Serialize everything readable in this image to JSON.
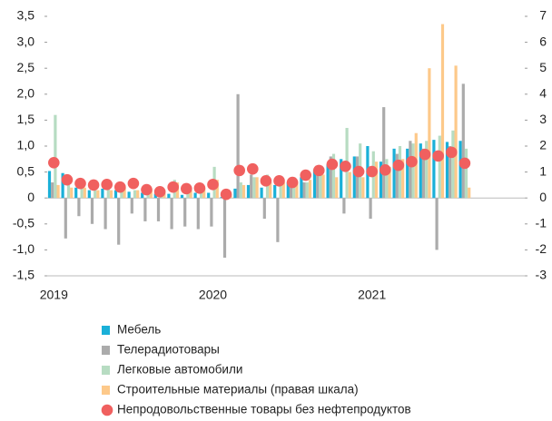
{
  "chart_data": {
    "type": "bar",
    "categories": [
      "2019",
      null,
      null,
      null,
      null,
      null,
      null,
      null,
      null,
      null,
      null,
      null,
      "2020",
      null,
      null,
      null,
      null,
      null,
      null,
      null,
      null,
      null,
      null,
      null,
      "2021",
      null,
      null,
      null,
      null,
      null,
      null,
      null
    ],
    "ylim": [
      -1.5,
      3.5
    ],
    "yticks": [
      {
        "value": -1.5,
        "label": "-1,5"
      },
      {
        "value": -1,
        "label": "-1,0"
      },
      {
        "value": -0.5,
        "label": "-0,5"
      },
      0,
      {
        "value": 0.5,
        "label": "0,5"
      },
      {
        "value": 1,
        "label": "1,0"
      },
      {
        "value": 1.5,
        "label": "1,5"
      },
      {
        "value": 2,
        "label": "2,0"
      },
      {
        "value": 2.5,
        "label": "2,5"
      },
      {
        "value": 3,
        "label": "3,0"
      },
      {
        "value": 3.5,
        "label": "3,5"
      }
    ],
    "y2lim": [
      -3,
      7
    ],
    "y2ticks": [
      -3,
      -2,
      -1,
      0,
      1,
      2,
      3,
      4,
      5,
      6,
      7
    ],
    "series": [
      {
        "name": "Мебель",
        "type": "bar",
        "color": "#1ab0d8",
        "values": [
          0.52,
          0.48,
          0.2,
          0.15,
          0.18,
          0.15,
          0.12,
          0.1,
          0.08,
          0.08,
          0.06,
          0.1,
          0.1,
          0.02,
          0.18,
          0.25,
          0.2,
          0.25,
          0.3,
          0.4,
          0.55,
          0.65,
          0.75,
          0.8,
          1.0,
          0.7,
          0.95,
          0.95,
          1.05,
          1.12,
          1.08,
          1.1
        ]
      },
      {
        "name": "Телерадиотовары",
        "type": "bar",
        "color": "#ababab",
        "values": [
          0.3,
          -0.78,
          -0.35,
          -0.5,
          -0.6,
          -0.9,
          -0.3,
          -0.45,
          -0.45,
          -0.6,
          -0.55,
          -0.6,
          -0.55,
          -1.15,
          2.0,
          0.45,
          -0.4,
          -0.85,
          0.3,
          0.3,
          0.6,
          0.8,
          -0.3,
          0.8,
          -0.4,
          1.75,
          0.85,
          1.1,
          0.95,
          -1.0,
          1.0,
          2.2
        ]
      },
      {
        "name": "Легковые автомобили",
        "type": "bar",
        "color": "#b7dcc2",
        "values": [
          1.6,
          0.25,
          0.2,
          0.15,
          0.25,
          0.2,
          0.15,
          0.15,
          0.2,
          0.35,
          0.1,
          0.25,
          0.6,
          0.05,
          0.3,
          0.4,
          0.45,
          0.3,
          0.4,
          0.3,
          0.5,
          0.85,
          1.35,
          1.05,
          0.9,
          0.75,
          1.0,
          1.05,
          1.1,
          1.2,
          1.3,
          0.95
        ]
      },
      {
        "name": "Строительные материалы (правая шкала)",
        "type": "bar",
        "axis": "y2",
        "color": "#fdc98a",
        "values": [
          0.5,
          0.4,
          0.4,
          0.3,
          0.3,
          0.4,
          0.3,
          0.3,
          0.3,
          0.6,
          0.3,
          0.4,
          0.7,
          0.1,
          0.5,
          0.8,
          0.6,
          0.6,
          0.6,
          0.7,
          0.9,
          0.8,
          1.0,
          0.8,
          1.4,
          1.2,
          1.5,
          2.5,
          5.0,
          6.7,
          5.1,
          0.4
        ]
      },
      {
        "name": "Непродовольственные товары без нефтепродуктов",
        "type": "scatter",
        "color": "#f0605f",
        "values": [
          0.68,
          0.35,
          0.28,
          0.25,
          0.26,
          0.21,
          0.28,
          0.16,
          0.12,
          0.21,
          0.18,
          0.19,
          0.26,
          0.07,
          0.53,
          0.56,
          0.33,
          0.33,
          0.3,
          0.44,
          0.53,
          0.65,
          0.61,
          0.51,
          0.51,
          0.54,
          0.63,
          0.7,
          0.84,
          0.81,
          0.88,
          0.67
        ]
      }
    ]
  }
}
